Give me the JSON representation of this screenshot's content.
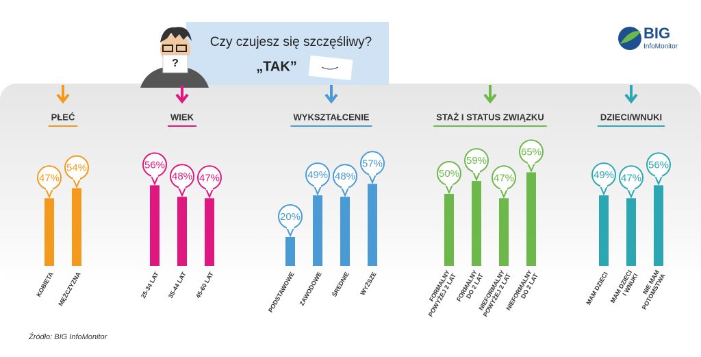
{
  "header": {
    "question": "Czy czujesz się szczęśliwy?",
    "answer": "„TAK”",
    "logo": "BIG",
    "logo_sub": "InfoMonitor",
    "source": "Źródło: BIG InfoMonitor"
  },
  "chart_data": [
    {
      "type": "bar",
      "title": "PŁEĆ",
      "categories": [
        "KOBIETA",
        "MĘŻCZYZNA"
      ],
      "values": [
        47,
        54
      ],
      "value_labels": [
        "47%",
        "54%"
      ],
      "color": "#f39a1e",
      "ylim": [
        0,
        100
      ]
    },
    {
      "type": "bar",
      "title": "WIEK",
      "categories": [
        "25-34 LAT",
        "35-44 LAT",
        "45-60 LAT"
      ],
      "values": [
        56,
        48,
        47
      ],
      "value_labels": [
        "56%",
        "48%",
        "47%"
      ],
      "color": "#e0177f",
      "ylim": [
        0,
        100
      ]
    },
    {
      "type": "bar",
      "title": "WYKSZTAŁCENIE",
      "categories": [
        "PODSTAWOWE",
        "ZAWODOWE",
        "ŚREDNIE",
        "WYŻSZE"
      ],
      "values": [
        20,
        49,
        48,
        57
      ],
      "value_labels": [
        "20%",
        "49%",
        "48%",
        "57%"
      ],
      "color": "#4a9ad6",
      "ylim": [
        0,
        100
      ]
    },
    {
      "type": "bar",
      "title": "STAŻ I STATUS ZWIĄZKU",
      "categories": [
        "FORMALNY\nPOWYŻEJ 2 LAT",
        "FORMALNY\nDO 2 LAT",
        "NIEFORMALNY\nPOWYŻEJ 2 LAT",
        "NIEFORMALNY\nDO 2 LAT"
      ],
      "values": [
        50,
        59,
        47,
        65
      ],
      "value_labels": [
        "50%",
        "59%",
        "47%",
        "65%"
      ],
      "color": "#6cb84a",
      "ylim": [
        0,
        100
      ]
    },
    {
      "type": "bar",
      "title": "DZIECI/WNUKI",
      "categories": [
        "MAM DZIECI",
        "MAM DZIECI\nI WNUKI",
        "NIE MAM\nPOTOMSTWA"
      ],
      "values": [
        49,
        47,
        56
      ],
      "value_labels": [
        "49%",
        "47%",
        "56%"
      ],
      "color": "#2aa7b3",
      "ylim": [
        0,
        100
      ]
    }
  ]
}
